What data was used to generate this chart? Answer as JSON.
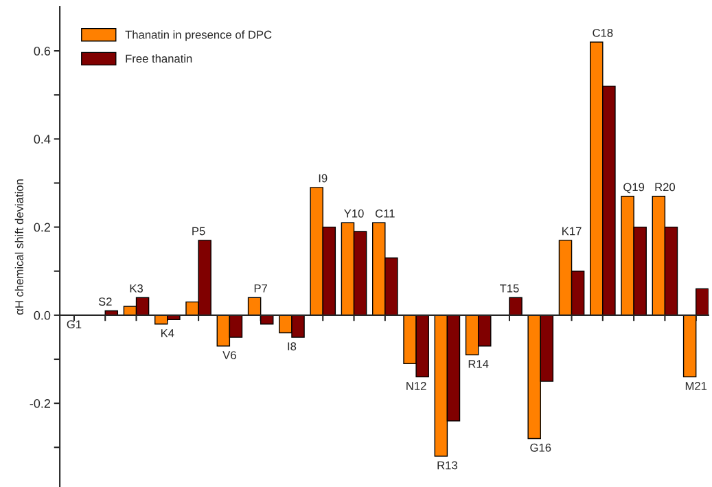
{
  "chart_data": {
    "type": "bar",
    "ylabel": "αH chemical shift deviation",
    "categories": [
      "G1",
      "S2",
      "K3",
      "K4",
      "P5",
      "V6",
      "P7",
      "I8",
      "I9",
      "Y10",
      "C11",
      "N12",
      "R13",
      "R14",
      "T15",
      "G16",
      "K17",
      "C18",
      "Q19",
      "R20",
      "M21"
    ],
    "series": [
      {
        "name": "Thanatin in presence of DPC",
        "color": "#ff8000",
        "values": [
          null,
          null,
          0.02,
          -0.02,
          0.03,
          -0.07,
          0.04,
          -0.04,
          0.29,
          0.21,
          0.21,
          -0.11,
          -0.32,
          -0.09,
          null,
          -0.28,
          0.17,
          0.62,
          0.27,
          0.27,
          -0.14
        ]
      },
      {
        "name": "Free thanatin",
        "color": "#800000",
        "values": [
          null,
          0.01,
          0.04,
          -0.01,
          0.17,
          -0.05,
          -0.02,
          -0.05,
          0.2,
          0.19,
          0.13,
          -0.14,
          -0.24,
          -0.07,
          0.04,
          -0.15,
          0.1,
          0.52,
          0.2,
          0.2,
          0.06
        ]
      }
    ],
    "ylim": [
      -0.39,
      0.7
    ],
    "yticks": [
      {
        "value": -0.3,
        "label": null
      },
      -0.2,
      {
        "value": -0.1,
        "label": null
      },
      {
        "value": 0,
        "label": "0.0"
      },
      {
        "value": 0.1,
        "label": null
      },
      0.2,
      {
        "value": 0.3,
        "label": null
      },
      0.4,
      {
        "value": 0.5,
        "label": null
      },
      0.6
    ],
    "legend": "top left",
    "grid": false
  }
}
